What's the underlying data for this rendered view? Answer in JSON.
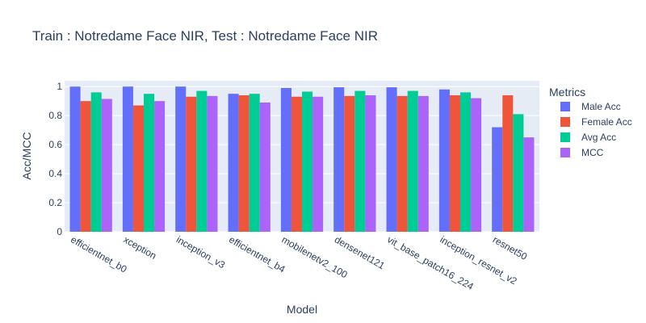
{
  "chart_data": {
    "type": "bar",
    "title": "Train : Notredame Face NIR, Test : Notredame Face NIR",
    "xlabel": "Model",
    "ylabel": "Acc/MCC",
    "ylim": [
      0,
      1.04
    ],
    "yticks": [
      0,
      0.2,
      0.4,
      0.6,
      0.8,
      1
    ],
    "grid": true,
    "legend": {
      "title": "Metrics",
      "placement": "right"
    },
    "categories": [
      "efficientnet_b0",
      "xception",
      "inception_v3",
      "efficientnet_b4",
      "mobilenetv2_100",
      "densenet121",
      "vit_base_patch16_224",
      "inception_resnet_v2",
      "resnet50"
    ],
    "series": [
      {
        "name": "Male Acc",
        "color": "#636efa",
        "values": [
          1.0,
          1.0,
          1.0,
          0.95,
          0.99,
          0.995,
          0.995,
          0.98,
          0.72
        ]
      },
      {
        "name": "Female Acc",
        "color": "#ef553b",
        "values": [
          0.9,
          0.87,
          0.93,
          0.94,
          0.93,
          0.935,
          0.935,
          0.94,
          0.94
        ]
      },
      {
        "name": "Avg Acc",
        "color": "#00cc96",
        "values": [
          0.96,
          0.95,
          0.97,
          0.95,
          0.965,
          0.97,
          0.97,
          0.96,
          0.81
        ]
      },
      {
        "name": "MCC",
        "color": "#ab63fa",
        "values": [
          0.915,
          0.9,
          0.935,
          0.89,
          0.93,
          0.94,
          0.935,
          0.92,
          0.65
        ]
      }
    ]
  }
}
